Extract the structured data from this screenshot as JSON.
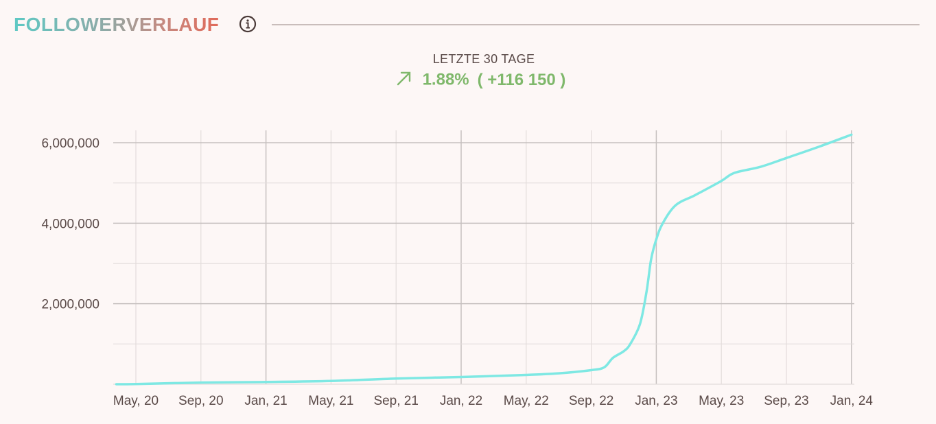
{
  "header": {
    "title": "FOLLOWERVERLAUF",
    "info_icon": "info-icon"
  },
  "summary": {
    "period_label": "LETZTE 30 TAGE",
    "trend_icon": "trend-up-arrow-icon",
    "percent_change": "1.88%",
    "absolute_change": "( +116 150 )"
  },
  "colors": {
    "line": "#7ee8e3",
    "positive": "#7fb86b",
    "grid": "#e3dcdb",
    "grid_major": "#c6c0bf",
    "text": "#5a4a48"
  },
  "chart_data": {
    "type": "line",
    "title": "FOLLOWERVERLAUF",
    "xlabel": "",
    "ylabel": "",
    "x_ticks": [
      "May, 20",
      "Sep, 20",
      "Jan, 21",
      "May, 21",
      "Sep, 21",
      "Jan, 22",
      "May, 22",
      "Sep, 22",
      "Jan, 23",
      "May, 23",
      "Sep, 23",
      "Jan, 24"
    ],
    "y_ticks": [
      2000000,
      4000000,
      6000000
    ],
    "y_tick_labels": [
      "2,000,000",
      "4,000,000",
      "6,000,000"
    ],
    "ylim": [
      0,
      6300000
    ],
    "grid": true,
    "series": [
      {
        "name": "Follower",
        "x": [
          -0.3,
          0,
          1,
          2,
          3,
          4,
          5,
          6,
          6.5,
          7,
          7.2,
          7.33,
          7.5,
          7.6,
          7.75,
          7.85,
          7.92,
          8,
          8.1,
          8.3,
          8.6,
          9,
          9.2,
          9.6,
          10,
          10.5,
          11
        ],
        "values": [
          0,
          5000,
          40000,
          55000,
          80000,
          140000,
          180000,
          230000,
          270000,
          350000,
          420000,
          650000,
          820000,
          1000000,
          1500000,
          2300000,
          3100000,
          3600000,
          4000000,
          4450000,
          4700000,
          5050000,
          5250000,
          5400000,
          5620000,
          5900000,
          6200000
        ]
      }
    ]
  }
}
